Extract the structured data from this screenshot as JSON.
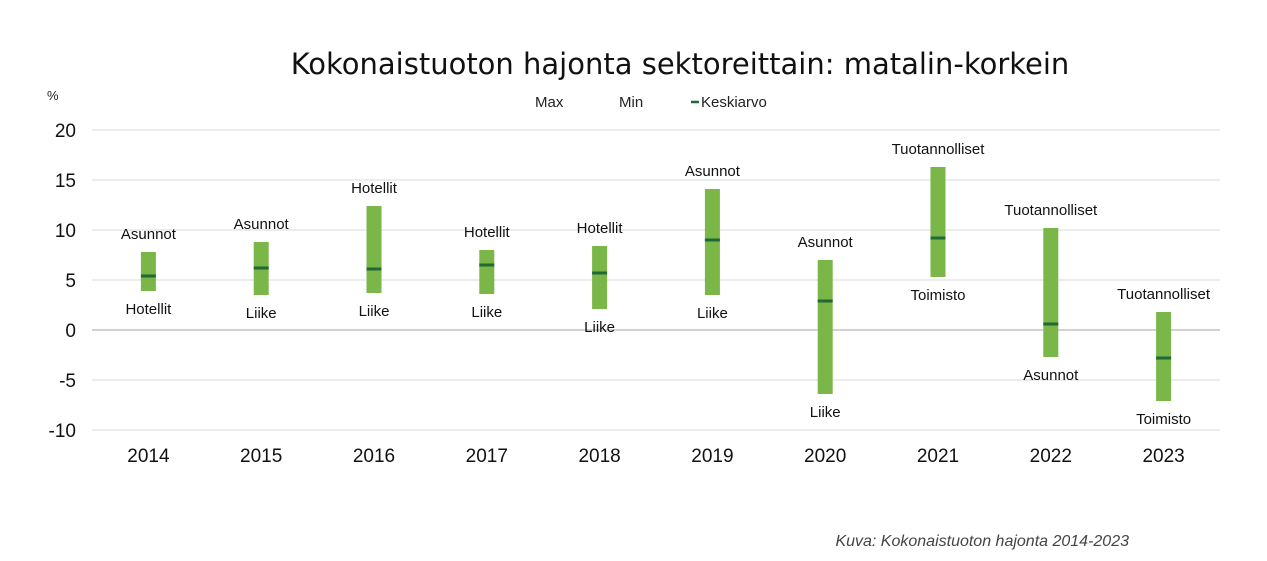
{
  "chart_data": {
    "type": "bar",
    "title": "Kokonaistuoton hajonta sektoreittain: matalin-korkein",
    "ylabel": "%",
    "ylim": [
      -10,
      20
    ],
    "yticks": [
      20,
      15,
      10,
      5,
      0,
      -5,
      -10
    ],
    "grid": true,
    "legend": {
      "position": "top",
      "entries": [
        "Max",
        "Min",
        "Keskiarvo"
      ]
    },
    "categories": [
      "2014",
      "2015",
      "2016",
      "2017",
      "2018",
      "2019",
      "2020",
      "2021",
      "2022",
      "2023"
    ],
    "series": [
      {
        "name": "Max",
        "values": [
          7.8,
          8.8,
          12.4,
          8.0,
          8.4,
          14.1,
          7.0,
          16.3,
          10.2,
          1.8
        ]
      },
      {
        "name": "Min",
        "values": [
          3.9,
          3.5,
          3.7,
          3.6,
          2.1,
          3.5,
          -6.4,
          5.3,
          -2.7,
          -7.1
        ]
      },
      {
        "name": "Keskiarvo",
        "values": [
          5.4,
          6.2,
          6.1,
          6.5,
          5.7,
          9.0,
          2.9,
          9.2,
          0.6,
          -2.8
        ]
      }
    ],
    "max_labels": [
      "Asunnot",
      "Asunnot",
      "Hotellit",
      "Hotellit",
      "Hotellit",
      "Asunnot",
      "Asunnot",
      "Tuotannolliset",
      "Tuotannolliset",
      "Tuotannolliset"
    ],
    "min_labels": [
      "Hotellit",
      "Liike",
      "Liike",
      "Liike",
      "Liike",
      "Liike",
      "Liike",
      "Toimisto",
      "Asunnot",
      "Toimisto"
    ],
    "colors": {
      "range_bar": "#7ab648",
      "mean_marker": "#1f6a35",
      "gridline": "#d9d9d9",
      "zero_line": "#a6a6a6"
    }
  },
  "caption": "Kuva: Kokonaistuoton hajonta 2014-2023"
}
